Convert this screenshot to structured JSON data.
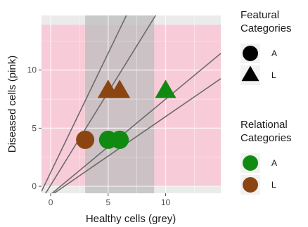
{
  "chart_data": {
    "type": "scatter",
    "xlabel": "Healthy cells (grey)",
    "ylabel": "Diseased cells (pink)",
    "xlim": [
      -0.8,
      14.8
    ],
    "ylim": [
      -0.6,
      14.7
    ],
    "x_ticks": [
      0,
      5,
      10
    ],
    "y_ticks": [
      0,
      5,
      10
    ],
    "x_tick_labels": [
      "0",
      "5",
      "10"
    ],
    "y_tick_labels": [
      "0",
      "5",
      "10"
    ],
    "grid": true,
    "legend_position": "right",
    "regions": [
      {
        "kind": "pink-band",
        "x": [
          -0.8,
          14.8
        ],
        "y": [
          0,
          13.9
        ],
        "color": "#f8c9d6"
      },
      {
        "kind": "grey-band",
        "x": [
          3,
          9
        ],
        "y": [
          -0.6,
          14.7
        ],
        "color": "#bdbdbd"
      }
    ],
    "lines": [
      {
        "slope": 2.05,
        "intercept": 1.2
      },
      {
        "slope": 1.6,
        "intercept": 0.1
      },
      {
        "slope": 0.82,
        "intercept": -0.7
      },
      {
        "slope": 0.68,
        "intercept": -0.8
      }
    ],
    "points": [
      {
        "x": 5.0,
        "y": 8.2,
        "shape": "triangle",
        "color": "#8b4513",
        "featural": "L",
        "relational": "L"
      },
      {
        "x": 6.0,
        "y": 8.2,
        "shape": "triangle",
        "color": "#8b4513",
        "featural": "L",
        "relational": "L"
      },
      {
        "x": 10.0,
        "y": 8.2,
        "shape": "triangle",
        "color": "#118a11",
        "featural": "L",
        "relational": "A"
      },
      {
        "x": 3.0,
        "y": 4.0,
        "shape": "circle",
        "color": "#8b4513",
        "featural": "A",
        "relational": "L"
      },
      {
        "x": 5.0,
        "y": 4.0,
        "shape": "circle",
        "color": "#118a11",
        "featural": "A",
        "relational": "A"
      },
      {
        "x": 6.0,
        "y": 4.0,
        "shape": "circle",
        "color": "#118a11",
        "featural": "A",
        "relational": "A"
      }
    ],
    "legends": [
      {
        "title_lines": [
          "Featural",
          "Categories"
        ],
        "entries": [
          {
            "label": "A",
            "shape": "circle",
            "color": "#000000"
          },
          {
            "label": "L",
            "shape": "triangle",
            "color": "#000000"
          }
        ]
      },
      {
        "title_lines": [
          "Relational",
          "Categories"
        ],
        "entries": [
          {
            "label": "A",
            "shape": "circle",
            "color": "#118a11"
          },
          {
            "label": "L",
            "shape": "circle",
            "color": "#8b4513"
          }
        ]
      }
    ]
  }
}
